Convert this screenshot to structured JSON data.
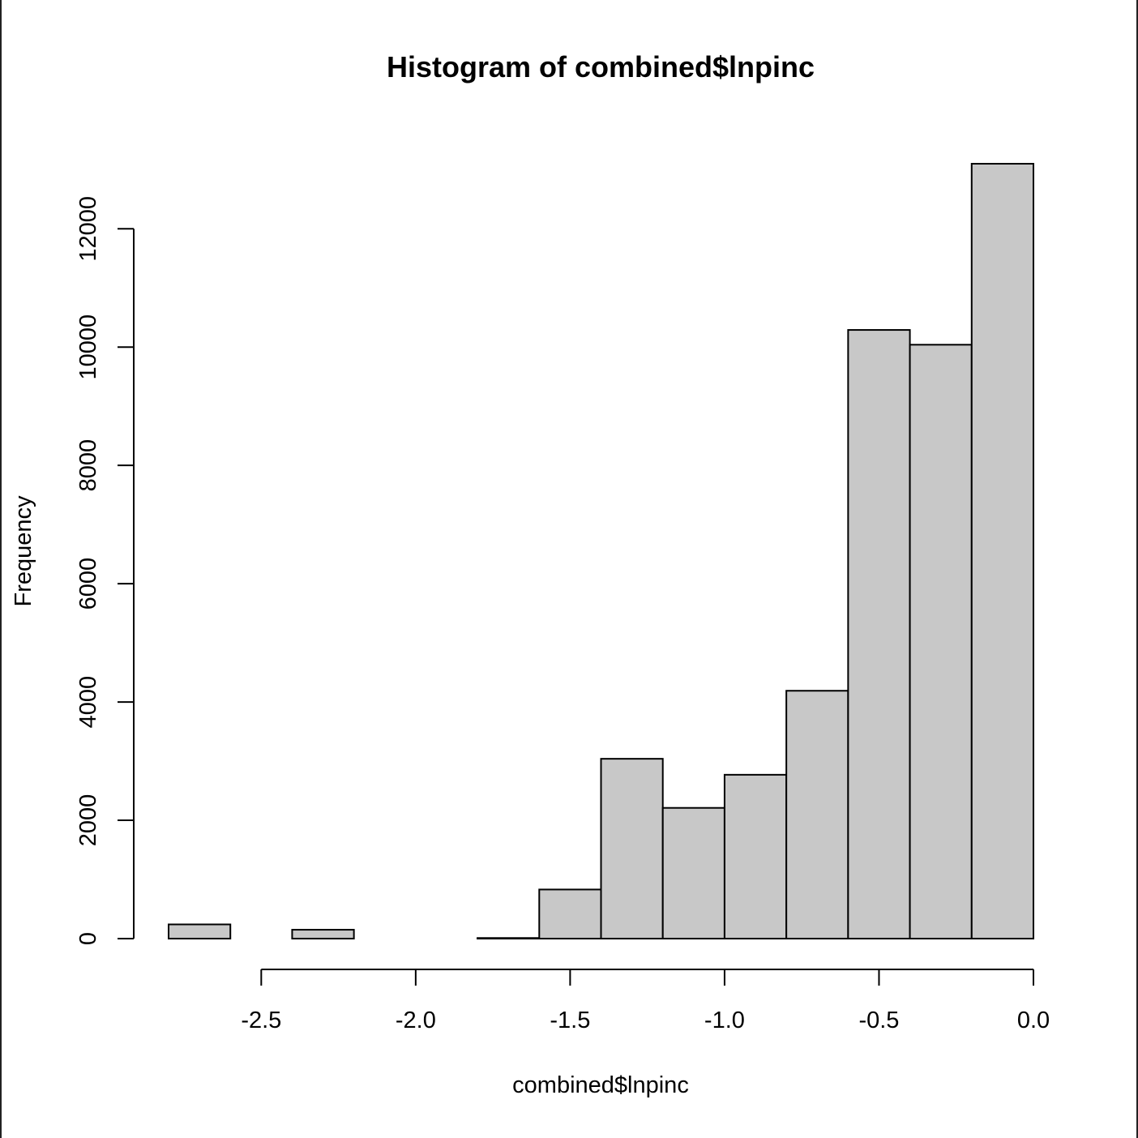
{
  "chart_data": {
    "type": "bar",
    "title": "Histogram of combined$lnpinc",
    "xlabel": "combined$lnpinc",
    "ylabel": "Frequency",
    "xlim": [
      -2.8,
      0.0
    ],
    "ylim": [
      0,
      13100
    ],
    "bin_width": 0.2,
    "bins": [
      {
        "x0": -2.8,
        "x1": -2.6,
        "count": 240
      },
      {
        "x0": -2.6,
        "x1": -2.4,
        "count": 0
      },
      {
        "x0": -2.4,
        "x1": -2.2,
        "count": 150
      },
      {
        "x0": -2.2,
        "x1": -2.0,
        "count": 0
      },
      {
        "x0": -2.0,
        "x1": -1.8,
        "count": 0
      },
      {
        "x0": -1.8,
        "x1": -1.6,
        "count": 10
      },
      {
        "x0": -1.6,
        "x1": -1.4,
        "count": 830
      },
      {
        "x0": -1.4,
        "x1": -1.2,
        "count": 3040
      },
      {
        "x0": -1.2,
        "x1": -1.0,
        "count": 2210
      },
      {
        "x0": -1.0,
        "x1": -0.8,
        "count": 2770
      },
      {
        "x0": -0.8,
        "x1": -0.6,
        "count": 4190
      },
      {
        "x0": -0.6,
        "x1": -0.4,
        "count": 10290
      },
      {
        "x0": -0.4,
        "x1": -0.2,
        "count": 10040
      },
      {
        "x0": -0.2,
        "x1": 0.0,
        "count": 13100
      }
    ],
    "x_ticks": [
      {
        "value": -2.5,
        "label": "-2.5"
      },
      {
        "value": -2.0,
        "label": "-2.0"
      },
      {
        "value": -1.5,
        "label": "-1.5"
      },
      {
        "value": -1.0,
        "label": "-1.0"
      },
      {
        "value": -0.5,
        "label": "-0.5"
      },
      {
        "value": 0.0,
        "label": "0.0"
      }
    ],
    "y_ticks": [
      {
        "value": 0,
        "label": "0"
      },
      {
        "value": 2000,
        "label": "2000"
      },
      {
        "value": 4000,
        "label": "4000"
      },
      {
        "value": 6000,
        "label": "6000"
      },
      {
        "value": 8000,
        "label": "8000"
      },
      {
        "value": 10000,
        "label": "10000"
      },
      {
        "value": 12000,
        "label": "12000"
      }
    ],
    "grid": false,
    "bar_fill": "#c8c8c8",
    "bar_stroke": "#000000"
  }
}
